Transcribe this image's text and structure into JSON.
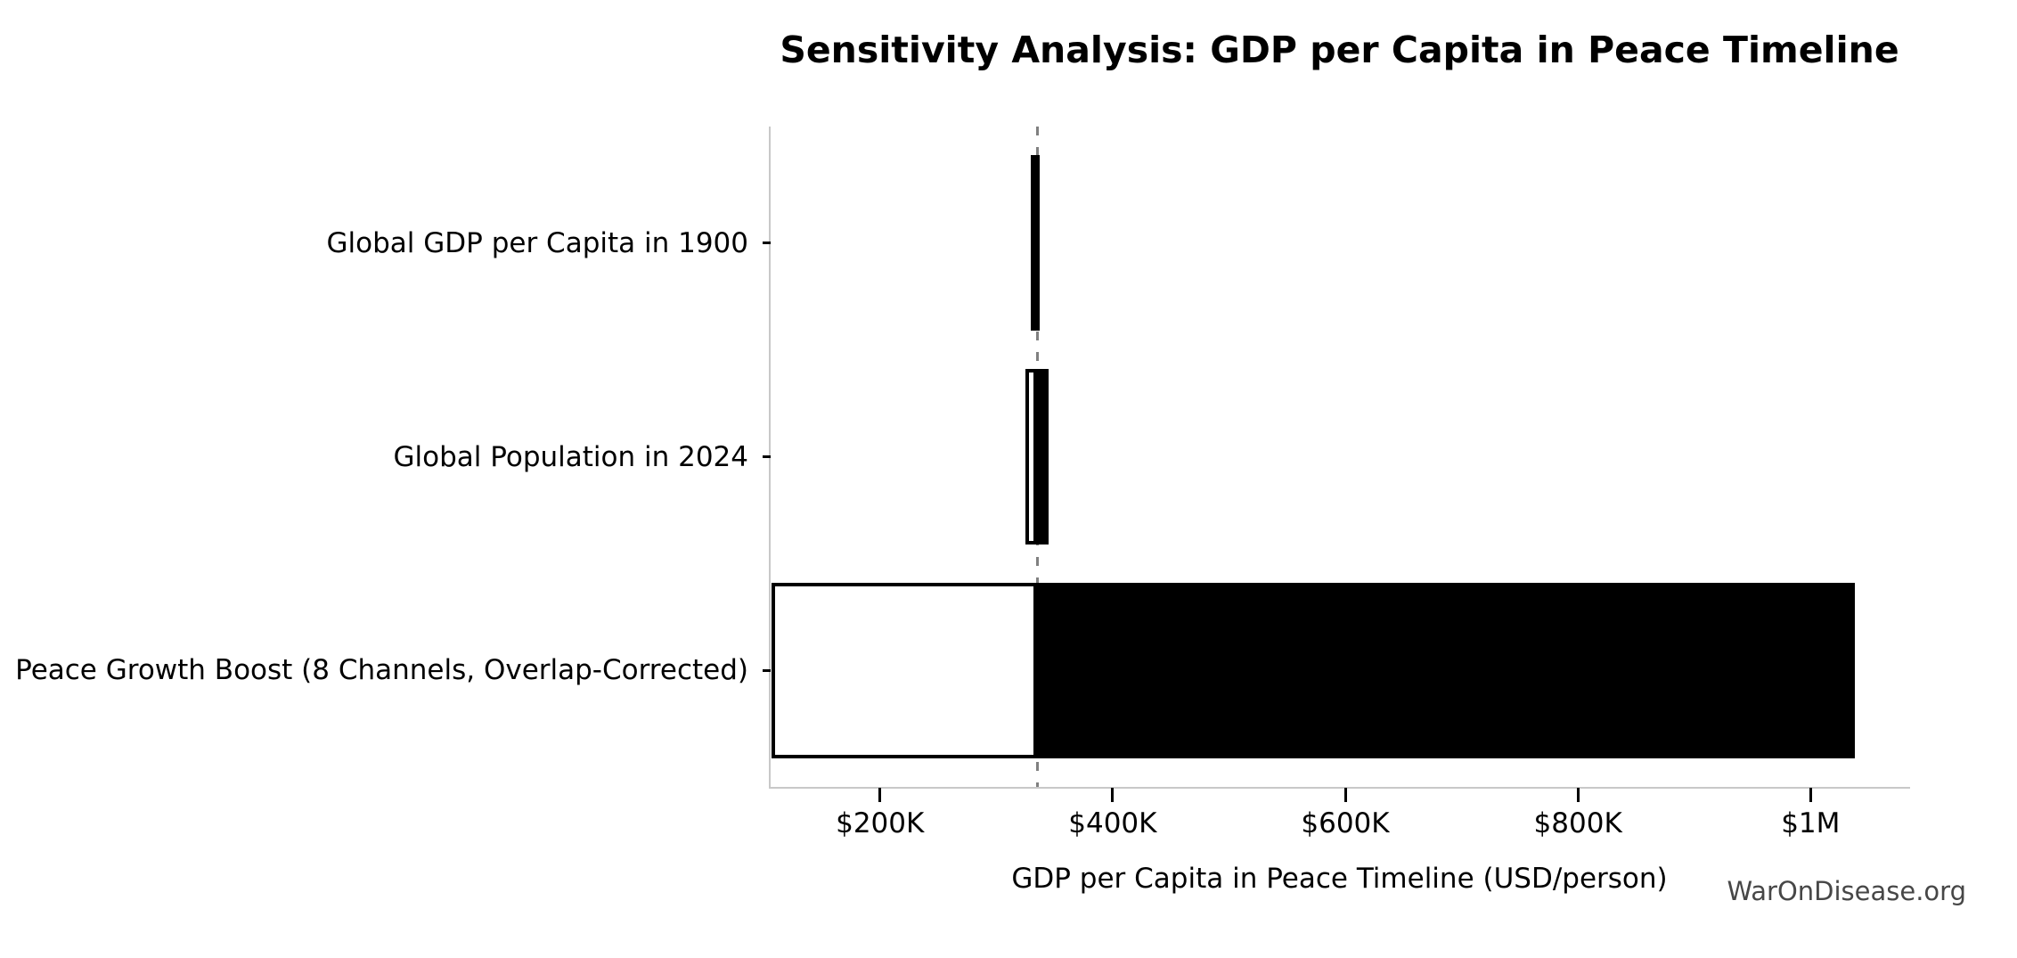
{
  "chart_data": {
    "type": "bar",
    "subtype": "tornado-sensitivity",
    "orientation": "horizontal",
    "title": "Sensitivity Analysis: GDP per Capita in Peace Timeline",
    "xlabel": "GDP per Capita in Peace Timeline (USD/person)",
    "ylabel": "",
    "watermark": "WarOnDisease.org",
    "grid": false,
    "legend": false,
    "categories": [
      "Global GDP per Capita in 1900",
      "Global Population in 2024",
      "Peace Growth Boost (8 Channels, Overlap-Corrected)"
    ],
    "baseline_value": 335000,
    "ranges": [
      {
        "category": "Global GDP per Capita in 1900",
        "low": 330000,
        "high": 337000
      },
      {
        "category": "Global Population in 2024",
        "low": 325000,
        "high": 345000
      },
      {
        "category": "Peace Growth Boost (8 Channels, Overlap-Corrected)",
        "low": 107000,
        "high": 1038000
      }
    ],
    "xlim": [
      106000,
      1084000
    ],
    "xticks": [
      {
        "value": 200000,
        "label": "$200K"
      },
      {
        "value": 400000,
        "label": "$400K"
      },
      {
        "value": 600000,
        "label": "$600K"
      },
      {
        "value": 800000,
        "label": "$800K"
      },
      {
        "value": 1000000,
        "label": "$1M"
      }
    ],
    "colors": {
      "high_bar": "#000000",
      "low_bar_fill": "#ffffff",
      "low_bar_edge": "#000000",
      "baseline_line": "#808080",
      "spine": "#c8c8c8",
      "tick": "#000000",
      "text": "#000000",
      "watermark": "#474747",
      "background": "#ffffff"
    }
  }
}
